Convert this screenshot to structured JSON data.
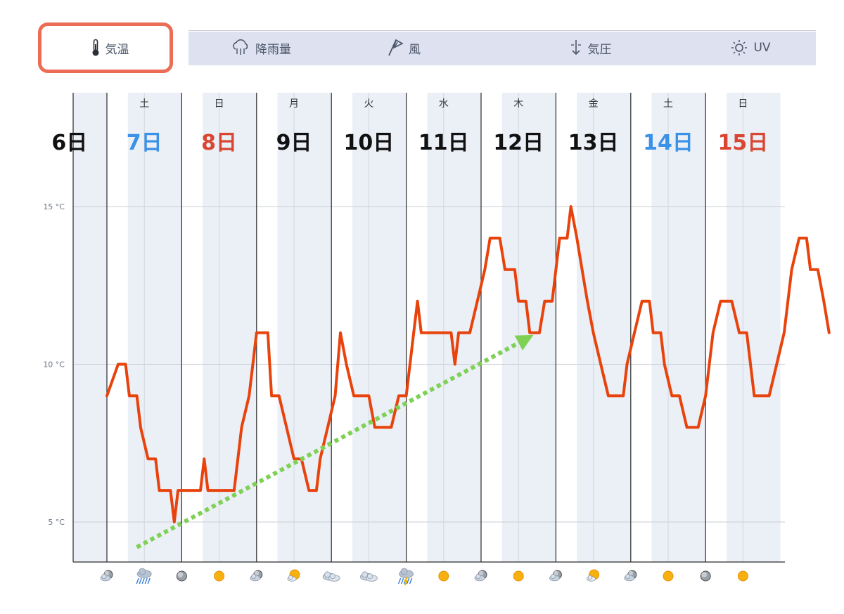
{
  "tabs": [
    {
      "label": "気温",
      "icon": "thermometer-icon",
      "active": true
    },
    {
      "label": "降雨量",
      "icon": "rain-cloud-icon",
      "active": false
    },
    {
      "label": "風",
      "icon": "windsock-icon",
      "active": false
    },
    {
      "label": "気圧",
      "icon": "pressure-arrow-icon",
      "active": false
    },
    {
      "label": "UV",
      "icon": "sun-icon",
      "active": false
    }
  ],
  "colors": {
    "line": "#e8430c",
    "trend": "#7ed155",
    "highlight": "#ec6d55",
    "saturday": "#3a91e8",
    "sunday": "#d94732",
    "weekday": "#111111",
    "band": "#ebeff6"
  },
  "chart_data": {
    "type": "line",
    "ylim": [
      3.8,
      17.0
    ],
    "yticks": [
      5,
      10,
      15
    ],
    "ytick_labels": [
      "5 °C",
      "10 °C",
      "15 °C"
    ],
    "grid": true,
    "weekdays": [
      "土",
      "日",
      "月",
      "火",
      "水",
      "木",
      "金",
      "土",
      "日"
    ],
    "dates": [
      {
        "label": "6日",
        "kind": "weekday"
      },
      {
        "label": "7日",
        "kind": "saturday"
      },
      {
        "label": "8日",
        "kind": "sunday"
      },
      {
        "label": "9日",
        "kind": "weekday"
      },
      {
        "label": "10日",
        "kind": "weekday"
      },
      {
        "label": "11日",
        "kind": "weekday"
      },
      {
        "label": "12日",
        "kind": "weekday"
      },
      {
        "label": "13日",
        "kind": "weekday"
      },
      {
        "label": "14日",
        "kind": "saturday"
      },
      {
        "label": "15日",
        "kind": "sunday"
      }
    ],
    "series": [
      {
        "values": [
          [
            0,
            9
          ],
          [
            0.15,
            10
          ],
          [
            0.25,
            10
          ],
          [
            0.3,
            9
          ],
          [
            0.4,
            9
          ],
          [
            0.45,
            8
          ],
          [
            0.55,
            7
          ],
          [
            0.65,
            7
          ],
          [
            0.7,
            6
          ],
          [
            0.85,
            6
          ],
          [
            0.9,
            5
          ],
          [
            0.95,
            6
          ],
          [
            1.25,
            6
          ],
          [
            1.3,
            7
          ],
          [
            1.35,
            6
          ],
          [
            1.7,
            6
          ],
          [
            1.8,
            8
          ],
          [
            1.9,
            9
          ],
          [
            2.0,
            11
          ],
          [
            2.15,
            11
          ],
          [
            2.2,
            9
          ],
          [
            2.3,
            9
          ],
          [
            2.4,
            8
          ],
          [
            2.5,
            7
          ],
          [
            2.6,
            7
          ],
          [
            2.7,
            6
          ],
          [
            2.8,
            6
          ],
          [
            2.85,
            7
          ],
          [
            2.95,
            8
          ],
          [
            3.05,
            9
          ],
          [
            3.12,
            11
          ],
          [
            3.2,
            10
          ],
          [
            3.3,
            9
          ],
          [
            3.5,
            9
          ],
          [
            3.58,
            8
          ],
          [
            3.8,
            8
          ],
          [
            3.9,
            9
          ],
          [
            4.0,
            9
          ],
          [
            4.1,
            11
          ],
          [
            4.15,
            12
          ],
          [
            4.2,
            11
          ],
          [
            4.6,
            11
          ],
          [
            4.65,
            10
          ],
          [
            4.7,
            11
          ],
          [
            4.85,
            11
          ],
          [
            4.95,
            12
          ],
          [
            5.05,
            13
          ],
          [
            5.12,
            14
          ],
          [
            5.25,
            14
          ],
          [
            5.32,
            13
          ],
          [
            5.45,
            13
          ],
          [
            5.5,
            12
          ],
          [
            5.6,
            12
          ],
          [
            5.65,
            11
          ],
          [
            5.78,
            11
          ],
          [
            5.85,
            12
          ],
          [
            5.95,
            12
          ],
          [
            6.05,
            14
          ],
          [
            6.15,
            14
          ],
          [
            6.2,
            15
          ],
          [
            6.28,
            14
          ],
          [
            6.35,
            13
          ],
          [
            6.42,
            12
          ],
          [
            6.5,
            11
          ],
          [
            6.6,
            10
          ],
          [
            6.7,
            9
          ],
          [
            6.9,
            9
          ],
          [
            6.95,
            10
          ],
          [
            7.05,
            11
          ],
          [
            7.15,
            12
          ],
          [
            7.25,
            12
          ],
          [
            7.3,
            11
          ],
          [
            7.4,
            11
          ],
          [
            7.45,
            10
          ],
          [
            7.55,
            9
          ],
          [
            7.65,
            9
          ],
          [
            7.75,
            8
          ],
          [
            7.9,
            8
          ],
          [
            8.0,
            9
          ],
          [
            8.1,
            11
          ],
          [
            8.2,
            12
          ],
          [
            8.35,
            12
          ],
          [
            8.45,
            11
          ],
          [
            8.55,
            11
          ],
          [
            8.65,
            9
          ],
          [
            8.85,
            9
          ],
          [
            8.95,
            10
          ],
          [
            9.05,
            11
          ],
          [
            9.15,
            13
          ],
          [
            9.25,
            14
          ],
          [
            9.35,
            14
          ],
          [
            9.4,
            13
          ],
          [
            9.5,
            13
          ],
          [
            9.58,
            12
          ],
          [
            9.65,
            11
          ]
        ]
      }
    ],
    "trend_arrow": {
      "from": [
        0.4,
        4.2
      ],
      "to": [
        5.6,
        10.8
      ]
    },
    "weather_icons": [
      "cloud-moon-icon",
      "rain-icon",
      "moon-icon",
      "sun-icon",
      "cloud-moon-icon",
      "sun-cloud-icon",
      "cloud-icon",
      "cloud-icon",
      "thunder-rain-icon",
      "sun-icon",
      "cloud-moon-icon",
      "sun-icon",
      "cloud-moon-icon",
      "sun-cloud-icon",
      "cloud-moon-icon",
      "sun-icon",
      "moon-icon",
      "sun-icon"
    ]
  }
}
